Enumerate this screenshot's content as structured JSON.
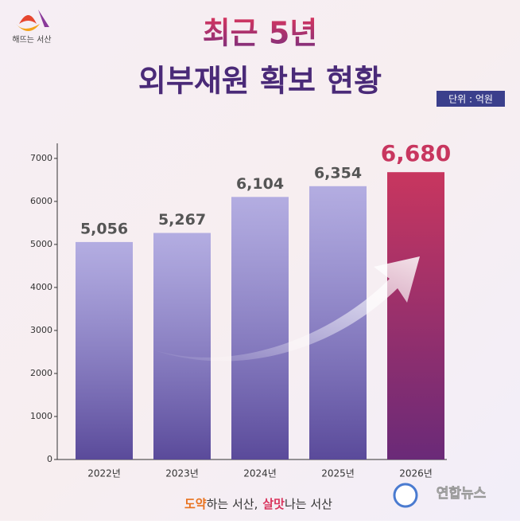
{
  "chart_data": {
    "type": "bar",
    "title": "최근 5년",
    "subtitle": "외부재원 확보 현황",
    "unit_label": "단위 : 억원",
    "categories": [
      "2022년",
      "2023년",
      "2024년",
      "2025년",
      "2026년"
    ],
    "values": [
      5056,
      5267,
      6104,
      6354,
      6680
    ],
    "value_labels": [
      "5,056",
      "5,267",
      "6,104",
      "6,354",
      "6,680"
    ],
    "colors": [
      "#8f8ad9",
      "#8f8ad9",
      "#8f8ad9",
      "#8f8ad9",
      "#c8365f"
    ],
    "ylim": [
      0,
      7350
    ],
    "yticks": [
      0,
      1000,
      2000,
      3000,
      4000,
      5000,
      6000,
      7000
    ]
  },
  "branding": {
    "logo_text": "해뜨는 서산",
    "slogan_1": "도약",
    "slogan_2": "하는 서산,",
    "slogan_3": "살맛",
    "slogan_4": "나는 서산",
    "watermark": "연합뉴스"
  }
}
